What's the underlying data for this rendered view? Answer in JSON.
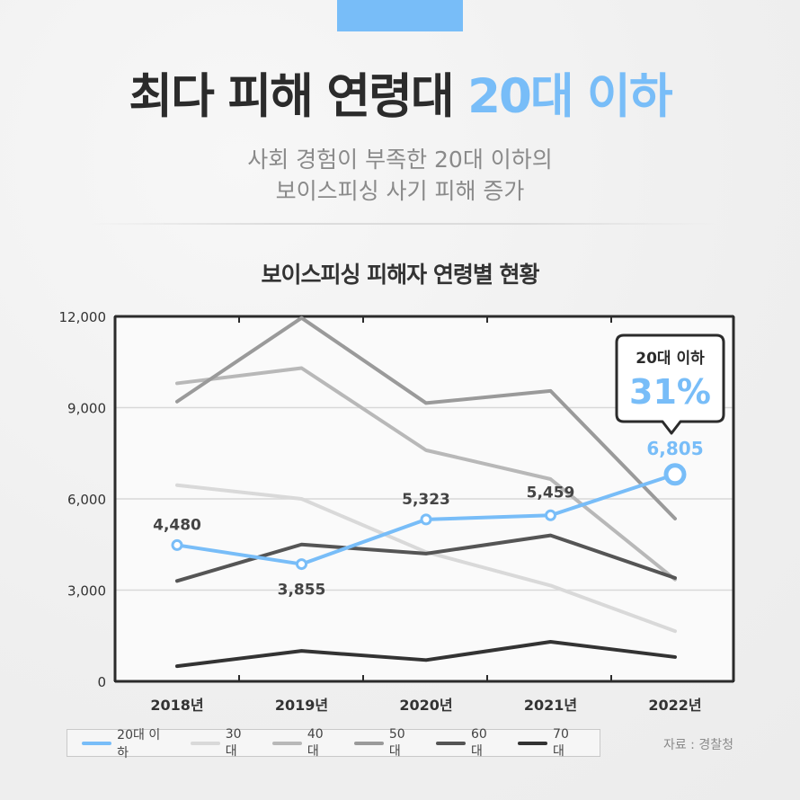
{
  "header": {
    "title_main": "최다 피해 연령대 ",
    "title_accent": "20대 이하",
    "subtitle_line1": "사회 경험이 부족한 20대 이하의",
    "subtitle_line2": "보이스피싱 사기 피해 증가"
  },
  "colors": {
    "accent": "#78bdf8",
    "text_dark": "#2b2b2b",
    "text_muted": "#8a8a8a"
  },
  "callout": {
    "label": "20대 이하",
    "value": "31%"
  },
  "source": "자료 : 경찰청",
  "chart_data": {
    "type": "line",
    "title": "보이스피싱 피해자 연령별 현황",
    "categories": [
      "2018년",
      "2019년",
      "2020년",
      "2021년",
      "2022년"
    ],
    "ylim": [
      0,
      12000
    ],
    "yticks": [
      0,
      3000,
      6000,
      9000,
      12000
    ],
    "ytick_labels": [
      "0",
      "3,000",
      "6,000",
      "9,000",
      "12,000"
    ],
    "grid": true,
    "legend_position": "bottom",
    "series": [
      {
        "name": "20대 이하",
        "color": "#78bdf8",
        "width": 4,
        "markers": true,
        "values": [
          4480,
          3855,
          5323,
          5459,
          6805
        ],
        "labels": [
          "4,480",
          "3,855",
          "5,323",
          "5,459",
          "6,805"
        ]
      },
      {
        "name": "30대",
        "color": "#d9d9d9",
        "width": 4,
        "values": [
          6450,
          6000,
          4250,
          3150,
          1650
        ]
      },
      {
        "name": "40대",
        "color": "#b8b8b8",
        "width": 4,
        "values": [
          9800,
          10300,
          7600,
          6650,
          3350
        ]
      },
      {
        "name": "50대",
        "color": "#9a9a9a",
        "width": 4,
        "values": [
          9200,
          11950,
          9150,
          9550,
          5350
        ]
      },
      {
        "name": "60대",
        "color": "#555555",
        "width": 4,
        "values": [
          3300,
          4500,
          4200,
          4800,
          3400
        ]
      },
      {
        "name": "70대",
        "color": "#333333",
        "width": 4,
        "values": [
          500,
          1000,
          700,
          1300,
          800
        ]
      }
    ]
  }
}
